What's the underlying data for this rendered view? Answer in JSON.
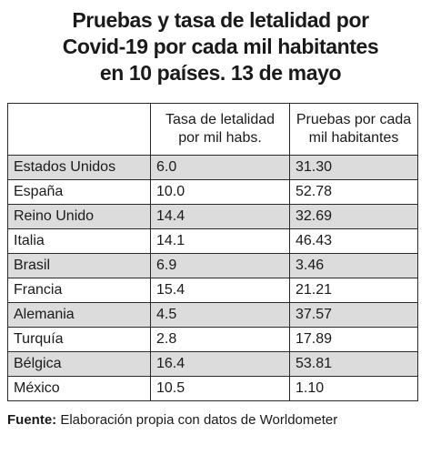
{
  "title": {
    "line1": "Pruebas y tasa de letalidad por",
    "line2": "Covid-19 por cada mil habitantes",
    "line3": "en 10 países. 13 de mayo"
  },
  "table": {
    "headers": [
      "",
      "Tasa de letalidad por mil habs.",
      "Pruebas por cada mil habitantes"
    ],
    "rows": [
      {
        "country": "Estados Unidos",
        "lethality": "6.0",
        "tests": "31.30"
      },
      {
        "country": "España",
        "lethality": "10.0",
        "tests": "52.78"
      },
      {
        "country": "Reino Unido",
        "lethality": "14.4",
        "tests": "32.69"
      },
      {
        "country": "Italia",
        "lethality": "14.1",
        "tests": "46.43"
      },
      {
        "country": "Brasil",
        "lethality": "6.9",
        "tests": "3.46"
      },
      {
        "country": "Francia",
        "lethality": "15.4",
        "tests": "21.21"
      },
      {
        "country": "Alemania",
        "lethality": "4.5",
        "tests": "37.57"
      },
      {
        "country": "Turquía",
        "lethality": "2.8",
        "tests": "17.89"
      },
      {
        "country": "Bélgica",
        "lethality": "16.4",
        "tests": "53.81"
      },
      {
        "country": "México",
        "lethality": "10.5",
        "tests": "1.10"
      }
    ]
  },
  "source": {
    "label": "Fuente:",
    "text": " Elaboración propia con datos de Worldometer"
  }
}
